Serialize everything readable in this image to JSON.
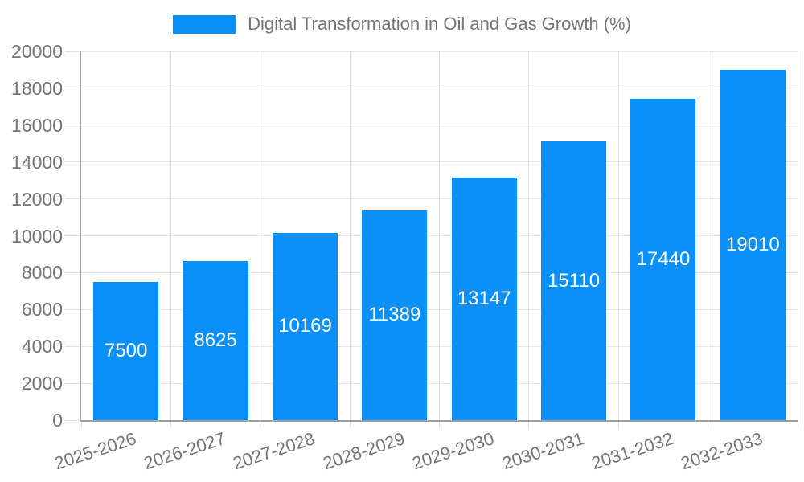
{
  "chart_data": {
    "type": "bar",
    "title": "Digital Transformation in Oil and Gas Growth (%)",
    "categories": [
      "2025-2026",
      "2026-2027",
      "2027-2028",
      "2028-2029",
      "2029-2030",
      "2030-2031",
      "2031-2032",
      "2032-2033"
    ],
    "series": [
      {
        "name": "Digital Transformation in Oil and Gas Growth (%)",
        "values": [
          7500,
          8625,
          10169,
          11389,
          13147,
          15110,
          17440,
          19010
        ]
      }
    ],
    "bar_value_labels": [
      "7500",
      "8625",
      "10169",
      "11389",
      "13147",
      "15110",
      "17440",
      "19010"
    ],
    "xlabel": "",
    "ylabel": "",
    "ylim": [
      0,
      20000
    ],
    "yticks": [
      0,
      2000,
      4000,
      6000,
      8000,
      10000,
      12000,
      14000,
      16000,
      18000,
      20000
    ],
    "grid": true,
    "legend_position": "top",
    "x_label_rotation_deg": -18
  },
  "style": {
    "bar_color": "#0a90f7",
    "grid_color": "#e6e6e6",
    "axis_color": "#a0a0a0",
    "tick_color": "#e0e0e0",
    "label_color": "#757575",
    "value_label_color": "#ffffff",
    "background_color": "#ffffff"
  }
}
